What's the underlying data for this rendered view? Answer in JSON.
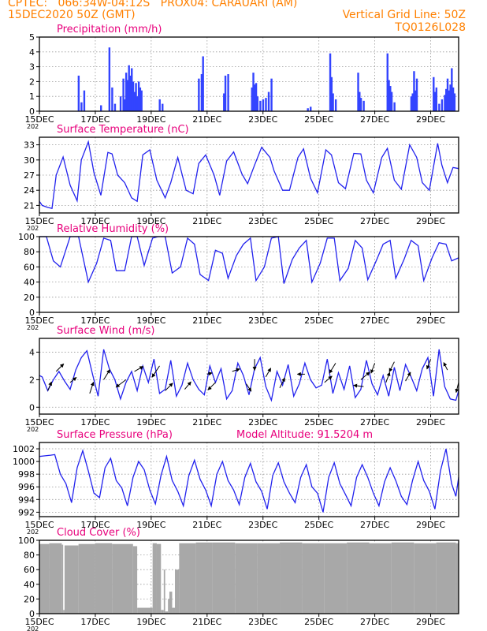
{
  "header": {
    "line1_left": "CPTEC:   066:34W-04:12S   PROX04: CARAUARI (AM)",
    "line2_left": "15DEC2020 50Z (GMT)",
    "line2_right": "Vertical Grid Line: 50Z",
    "line3_right": "TQ0126L028",
    "color": "#ff8000"
  },
  "colors": {
    "title": "#e8007c",
    "line": "#2222ee",
    "bar": "#3344ff",
    "cloud": "#a8a8a8",
    "wind_arrow": "#000000"
  },
  "x_axis": {
    "start_date": "15DEC",
    "end_date": "30DEC",
    "tick_labels": [
      "15DEC",
      "17DEC",
      "19DEC",
      "21DEC",
      "23DEC",
      "25DEC",
      "27DEC",
      "29DEC"
    ],
    "sub_label": "202"
  },
  "panels": [
    {
      "id": "precip",
      "title": "Precipitation  (mm/h)",
      "ylim": [
        0,
        5
      ],
      "yticks": [
        "0",
        "1",
        "2",
        "3",
        "4",
        "5"
      ]
    },
    {
      "id": "temp",
      "title": "Surface Temperature  (nC)",
      "ylim": [
        19.5,
        34.5
      ],
      "yticks": [
        "21",
        "24",
        "27",
        "30",
        "33"
      ]
    },
    {
      "id": "rh",
      "title": "Relative Humidity  (%)",
      "ylim": [
        0,
        100
      ],
      "yticks": [
        "0",
        "20",
        "40",
        "60",
        "80",
        "100"
      ]
    },
    {
      "id": "wind",
      "title": "Surface Wind  (m/s)",
      "ylim": [
        -0.5,
        5
      ],
      "yticks": [
        "0",
        "2",
        "4"
      ]
    },
    {
      "id": "press",
      "title": "Surface Pressure  (hPa)",
      "extra_label": "Model Altitude: 91.5204  m",
      "ylim": [
        991.3,
        1003
      ],
      "yticks": [
        "992",
        "994",
        "996",
        "998",
        "1000",
        "1002"
      ]
    },
    {
      "id": "cloud",
      "title": "Cloud Cover  (%)",
      "ylim": [
        0,
        100
      ],
      "yticks": [
        "0",
        "20",
        "40",
        "60",
        "80",
        "100"
      ]
    }
  ],
  "chart_data": [
    {
      "type": "bar",
      "title": "Precipitation  (mm/h)",
      "xlabel": "",
      "ylabel": "",
      "ylim": [
        0,
        5
      ],
      "x": [
        1.4,
        1.5,
        1.6,
        2.2,
        2.5,
        2.6,
        2.7,
        2.9,
        3.0,
        3.05,
        3.1,
        3.15,
        3.2,
        3.25,
        3.3,
        3.35,
        3.4,
        3.45,
        3.5,
        3.55,
        3.6,
        3.65,
        4.3,
        4.4,
        5.7,
        5.8,
        5.85,
        6.6,
        6.65,
        6.75,
        7.6,
        7.65,
        7.7,
        7.75,
        7.8,
        7.9,
        8.0,
        8.1,
        8.2,
        8.3,
        9.6,
        9.7,
        10.4,
        10.45,
        10.5,
        10.6,
        11.4,
        11.45,
        11.5,
        11.6,
        12.45,
        12.5,
        12.55,
        12.6,
        12.7,
        13.3,
        13.35,
        13.4,
        13.45,
        13.5,
        14.1,
        14.15,
        14.2,
        14.3,
        14.4,
        14.5,
        14.55,
        14.6,
        14.65,
        14.7,
        14.75,
        14.8,
        14.85
      ],
      "values": [
        2.4,
        0.6,
        1.4,
        0.4,
        4.3,
        1.6,
        0.5,
        1.0,
        2.2,
        0.8,
        2.6,
        2.1,
        3.1,
        2.4,
        2.9,
        2.0,
        1.3,
        1.9,
        1.0,
        2.0,
        1.6,
        1.4,
        0.8,
        0.5,
        2.2,
        2.5,
        3.7,
        1.2,
        2.4,
        2.5,
        1.6,
        2.6,
        1.8,
        1.9,
        1.0,
        0.7,
        0.8,
        0.9,
        1.3,
        2.2,
        0.2,
        0.3,
        3.9,
        2.3,
        1.2,
        0.8,
        2.6,
        1.3,
        0.9,
        0.7,
        3.9,
        2.1,
        1.7,
        1.3,
        0.6,
        1.0,
        1.2,
        2.7,
        1.4,
        2.2,
        2.3,
        1.3,
        1.6,
        0.5,
        0.8,
        1.1,
        1.5,
        2.2,
        1.4,
        1.8,
        2.9,
        1.6,
        1.2
      ]
    },
    {
      "type": "line",
      "title": "Surface Temperature  (nC)",
      "xlabel": "",
      "ylabel": "",
      "ylim": [
        19.5,
        34.5
      ],
      "x": [
        0,
        0.1,
        0.3,
        0.45,
        0.6,
        0.85,
        1.1,
        1.35,
        1.5,
        1.75,
        1.95,
        2.2,
        2.45,
        2.6,
        2.8,
        3.05,
        3.3,
        3.5,
        3.7,
        3.95,
        4.2,
        4.5,
        4.7,
        4.95,
        5.25,
        5.5,
        5.7,
        5.95,
        6.25,
        6.45,
        6.7,
        6.95,
        7.25,
        7.45,
        7.7,
        7.95,
        8.25,
        8.4,
        8.7,
        8.95,
        9.25,
        9.45,
        9.7,
        9.95,
        10.25,
        10.45,
        10.7,
        10.95,
        11.25,
        11.5,
        11.7,
        11.95,
        12.25,
        12.45,
        12.7,
        12.95,
        13.25,
        13.5,
        13.7,
        13.95,
        14.25,
        14.4,
        14.6,
        14.8,
        15.0
      ],
      "values": [
        21.8,
        21.0,
        20.6,
        20.4,
        27.0,
        30.6,
        25.0,
        21.9,
        30.0,
        33.6,
        27.5,
        23.0,
        31.5,
        31.2,
        27.0,
        25.5,
        22.5,
        21.8,
        31.0,
        32.0,
        26.0,
        22.5,
        25.5,
        30.5,
        24.0,
        23.3,
        29.3,
        31.0,
        27.0,
        23.0,
        29.8,
        31.6,
        27.2,
        25.3,
        29.0,
        32.5,
        30.5,
        27.8,
        24.0,
        24.0,
        30.5,
        32.2,
        26.4,
        23.5,
        32.0,
        31.0,
        25.5,
        24.3,
        31.3,
        31.2,
        26.0,
        23.5,
        30.5,
        32.3,
        26.0,
        24.2,
        33.0,
        30.5,
        25.5,
        24.0,
        33.3,
        29.0,
        25.5,
        28.5,
        28.3
      ]
    },
    {
      "type": "line",
      "title": "Relative Humidity  (%)",
      "xlabel": "",
      "ylabel": "",
      "ylim": [
        0,
        100
      ],
      "x": [
        0,
        0.25,
        0.5,
        0.75,
        1.1,
        1.4,
        1.75,
        2.05,
        2.3,
        2.55,
        2.75,
        3.05,
        3.3,
        3.5,
        3.75,
        4.05,
        4.25,
        4.5,
        4.75,
        5.05,
        5.3,
        5.55,
        5.75,
        6.05,
        6.3,
        6.55,
        6.75,
        7.05,
        7.3,
        7.55,
        7.75,
        8.05,
        8.3,
        8.55,
        8.75,
        9.05,
        9.3,
        9.55,
        9.75,
        10.05,
        10.3,
        10.55,
        10.75,
        11.05,
        11.3,
        11.55,
        11.75,
        12.05,
        12.3,
        12.55,
        12.75,
        13.05,
        13.3,
        13.55,
        13.75,
        14.05,
        14.3,
        14.55,
        14.75,
        15.0
      ],
      "values": [
        100,
        100,
        68,
        60,
        100,
        100,
        40,
        65,
        98,
        95,
        55,
        55,
        100,
        100,
        62,
        98,
        100,
        100,
        52,
        60,
        98,
        90,
        50,
        42,
        82,
        78,
        45,
        75,
        90,
        98,
        42,
        60,
        98,
        100,
        38,
        70,
        85,
        95,
        40,
        65,
        98,
        98,
        42,
        58,
        95,
        85,
        43,
        68,
        90,
        95,
        45,
        70,
        95,
        88,
        42,
        72,
        92,
        90,
        68,
        72
      ]
    },
    {
      "type": "line",
      "title": "Surface Wind  (m/s)",
      "xlabel": "",
      "ylabel": "",
      "ylim": [
        -0.5,
        5
      ],
      "x": [
        0,
        0.1,
        0.3,
        0.5,
        0.7,
        0.9,
        1.1,
        1.3,
        1.5,
        1.7,
        1.9,
        2.1,
        2.3,
        2.5,
        2.7,
        2.9,
        3.1,
        3.3,
        3.5,
        3.7,
        3.9,
        4.1,
        4.3,
        4.5,
        4.7,
        4.9,
        5.1,
        5.3,
        5.5,
        5.7,
        5.9,
        6.1,
        6.3,
        6.5,
        6.7,
        6.9,
        7.1,
        7.3,
        7.5,
        7.7,
        7.9,
        8.1,
        8.3,
        8.5,
        8.7,
        8.9,
        9.1,
        9.3,
        9.5,
        9.7,
        9.9,
        10.1,
        10.3,
        10.5,
        10.7,
        10.9,
        11.1,
        11.3,
        11.5,
        11.7,
        11.9,
        12.1,
        12.3,
        12.5,
        12.7,
        12.9,
        13.1,
        13.3,
        13.5,
        13.7,
        13.9,
        14.1,
        14.3,
        14.5,
        14.7,
        14.9,
        15.0
      ],
      "values": [
        2.3,
        2.2,
        1.2,
        2.0,
        2.6,
        1.9,
        1.3,
        2.7,
        3.6,
        4.1,
        2.4,
        0.8,
        4.2,
        2.8,
        2.0,
        0.6,
        1.8,
        2.6,
        1.2,
        3.0,
        1.8,
        3.5,
        1.0,
        1.3,
        3.4,
        0.8,
        1.6,
        3.2,
        2.0,
        1.3,
        0.9,
        3.0,
        1.8,
        2.8,
        0.6,
        1.2,
        3.2,
        2.3,
        0.9,
        2.8,
        3.6,
        1.5,
        0.5,
        2.6,
        1.6,
        3.1,
        0.8,
        1.7,
        3.2,
        2.0,
        1.4,
        1.6,
        3.5,
        1.0,
        2.5,
        1.3,
        3.0,
        0.7,
        1.3,
        3.4,
        1.7,
        0.9,
        2.3,
        0.8,
        2.9,
        1.2,
        3.1,
        2.2,
        1.2,
        2.8,
        3.6,
        0.8,
        4.2,
        1.5,
        0.6,
        0.5,
        1.2
      ]
    },
    {
      "type": "line",
      "title": "Surface Pressure  (hPa)",
      "xlabel": "",
      "ylabel": "",
      "ylim": [
        991.3,
        1003
      ],
      "x": [
        0,
        0.2,
        0.4,
        0.55,
        0.75,
        0.95,
        1.15,
        1.35,
        1.55,
        1.75,
        1.95,
        2.15,
        2.35,
        2.55,
        2.75,
        2.95,
        3.15,
        3.35,
        3.55,
        3.75,
        3.95,
        4.15,
        4.35,
        4.55,
        4.75,
        4.95,
        5.15,
        5.35,
        5.55,
        5.75,
        5.95,
        6.15,
        6.35,
        6.55,
        6.75,
        6.95,
        7.15,
        7.35,
        7.55,
        7.75,
        7.95,
        8.15,
        8.35,
        8.55,
        8.75,
        8.95,
        9.15,
        9.35,
        9.55,
        9.75,
        9.95,
        10.15,
        10.35,
        10.55,
        10.75,
        10.95,
        11.15,
        11.35,
        11.55,
        11.75,
        11.95,
        12.15,
        12.35,
        12.55,
        12.75,
        12.95,
        13.15,
        13.35,
        13.55,
        13.75,
        13.95,
        14.15,
        14.35,
        14.55,
        14.75,
        14.9,
        15.0
      ],
      "values": [
        1000.8,
        1000.9,
        1001.0,
        1001.1,
        998.0,
        996.5,
        993.5,
        999.0,
        1001.7,
        998.5,
        995.0,
        994.3,
        999.0,
        1000.5,
        997.0,
        995.8,
        993.0,
        997.5,
        1000.0,
        998.7,
        995.5,
        993.3,
        997.8,
        1000.8,
        997.0,
        995.3,
        993.0,
        997.8,
        1000.2,
        997.2,
        995.5,
        993.0,
        998.0,
        1000.0,
        997.0,
        995.5,
        993.2,
        997.5,
        999.7,
        996.8,
        995.3,
        992.5,
        997.8,
        999.8,
        996.8,
        995.0,
        993.5,
        997.5,
        999.5,
        996.0,
        995.0,
        992.0,
        997.5,
        999.8,
        996.5,
        994.8,
        993.0,
        997.5,
        999.5,
        997.5,
        995.0,
        993.0,
        996.8,
        999.0,
        997.0,
        994.5,
        993.2,
        997.0,
        1000.0,
        997.0,
        995.3,
        992.5,
        998.5,
        1002.0,
        996.5,
        994.5,
        997.5
      ]
    },
    {
      "type": "bar",
      "title": "Cloud Cover  (%)",
      "xlabel": "",
      "ylabel": "",
      "ylim": [
        0,
        100
      ],
      "x": [
        0,
        0.35,
        0.8,
        0.85,
        0.9,
        1.4,
        2.0,
        2.6,
        3.35,
        3.5,
        4.05,
        4.2,
        4.35,
        4.45,
        4.5,
        4.6,
        4.65,
        4.75,
        4.85,
        5.0,
        5.6,
        6.2,
        7.0,
        7.8,
        8.6,
        9.4,
        10.2,
        11.0,
        11.8,
        12.6,
        13.4,
        14.2,
        14.9
      ],
      "values": [
        95,
        96,
        94,
        5,
        93,
        95,
        96,
        95,
        92,
        8,
        96,
        95,
        5,
        60,
        3,
        20,
        30,
        8,
        60,
        96,
        97,
        97,
        96,
        96,
        97,
        96,
        96,
        97,
        96,
        97,
        96,
        97,
        96
      ]
    }
  ],
  "wind_arrows": [
    {
      "x": 0.3,
      "y": 1.2,
      "u": 0.3,
      "v": 0.7
    },
    {
      "x": 0.6,
      "y": 2.6,
      "u": 0.6,
      "v": 0.6
    },
    {
      "x": 1.1,
      "y": 1.8,
      "u": 0.5,
      "v": 0.4
    },
    {
      "x": 1.8,
      "y": 1.0,
      "u": 0.3,
      "v": 0.9
    },
    {
      "x": 2.3,
      "y": 2.0,
      "u": 0.5,
      "v": 0.8
    },
    {
      "x": 3.4,
      "y": 2.6,
      "u": 0.7,
      "v": 0.4
    },
    {
      "x": 3.1,
      "y": 2.0,
      "u": -0.8,
      "v": -0.6
    },
    {
      "x": 4.3,
      "y": 3.0,
      "u": -0.6,
      "v": -0.9
    },
    {
      "x": 4.5,
      "y": 1.2,
      "u": 0.6,
      "v": 0.6
    },
    {
      "x": 5.2,
      "y": 1.3,
      "u": 0.5,
      "v": 0.6
    },
    {
      "x": 6.0,
      "y": 2.4,
      "u": 0.4,
      "v": 0.1
    },
    {
      "x": 6.3,
      "y": 1.8,
      "u": -0.6,
      "v": -0.6
    },
    {
      "x": 6.9,
      "y": 2.6,
      "u": 0.6,
      "v": 0.2
    },
    {
      "x": 7.4,
      "y": 1.7,
      "u": 0.4,
      "v": -0.6
    },
    {
      "x": 7.7,
      "y": 3.5,
      "u": 0.0,
      "v": -0.9
    },
    {
      "x": 8.1,
      "y": 2.2,
      "u": 0.4,
      "v": 0.7
    },
    {
      "x": 8.6,
      "y": 1.4,
      "u": 0.4,
      "v": 0.8
    },
    {
      "x": 9.5,
      "y": 2.4,
      "u": -0.6,
      "v": 0.0
    },
    {
      "x": 10.2,
      "y": 1.8,
      "u": 0.6,
      "v": 0.5
    },
    {
      "x": 10.6,
      "y": 3.2,
      "u": -0.5,
      "v": -0.8
    },
    {
      "x": 11.5,
      "y": 2.0,
      "u": 0.7,
      "v": 0.6
    },
    {
      "x": 11.6,
      "y": 1.5,
      "u": -0.8,
      "v": 0.1
    },
    {
      "x": 12.0,
      "y": 3.2,
      "u": -0.3,
      "v": -0.8
    },
    {
      "x": 12.4,
      "y": 1.8,
      "u": 0.3,
      "v": 0.8
    },
    {
      "x": 12.7,
      "y": 3.3,
      "u": -0.4,
      "v": -0.8
    },
    {
      "x": 13.1,
      "y": 1.9,
      "u": 0.4,
      "v": 0.7
    },
    {
      "x": 14.0,
      "y": 3.5,
      "u": -0.3,
      "v": -0.8
    },
    {
      "x": 14.6,
      "y": 2.7,
      "u": -0.3,
      "v": 0.6
    },
    {
      "x": 15.0,
      "y": 1.8,
      "u": -0.2,
      "v": -0.8
    }
  ]
}
